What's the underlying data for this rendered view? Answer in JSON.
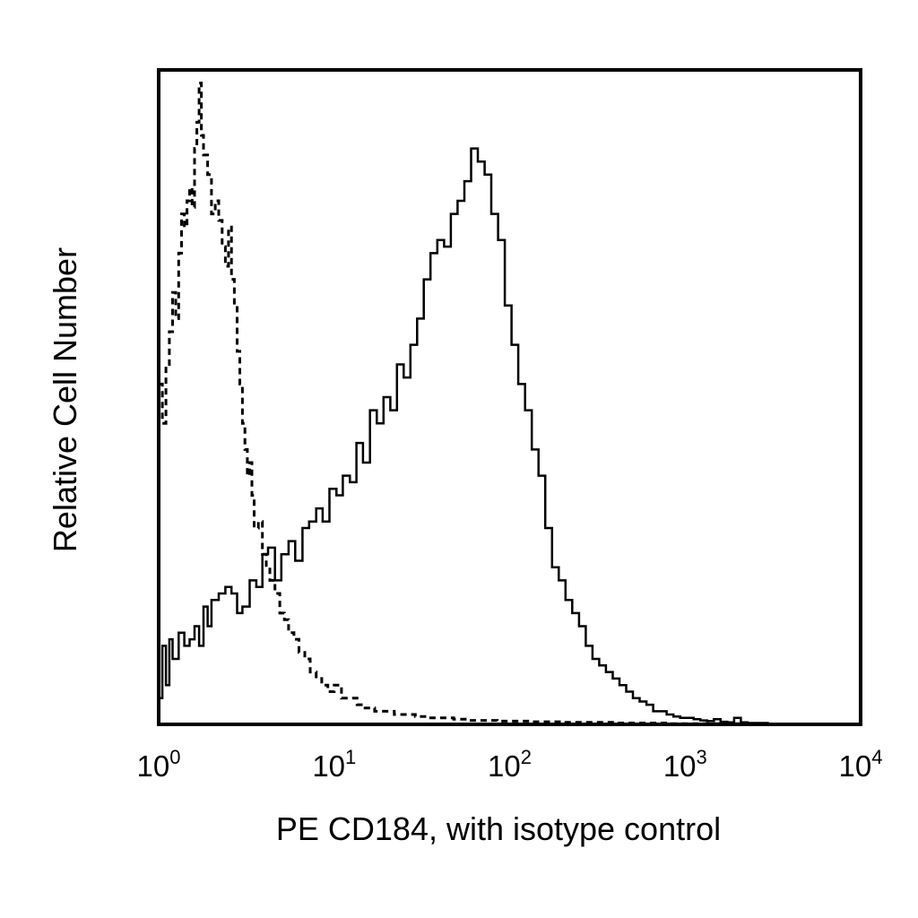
{
  "chart_data": {
    "type": "line",
    "title": "",
    "xlabel": "PE CD184, with isotype control",
    "ylabel": "Relative Cell Number",
    "x_scale": "log",
    "xlim": [
      1,
      10000
    ],
    "ylim": [
      0,
      1
    ],
    "grid": false,
    "legend": "none",
    "x_ticks": [
      {
        "value": 1,
        "base": "10",
        "exp": "0"
      },
      {
        "value": 10,
        "base": "10",
        "exp": "1"
      },
      {
        "value": 100,
        "base": "10",
        "exp": "2"
      },
      {
        "value": 1000,
        "base": "10",
        "exp": "3"
      },
      {
        "value": 10000,
        "base": "10",
        "exp": "4"
      }
    ],
    "series": [
      {
        "style": "solid",
        "color": "#000000",
        "x": [
          1.0,
          1.05,
          1.1,
          1.15,
          1.2,
          1.3,
          1.4,
          1.5,
          1.6,
          1.7,
          1.8,
          1.9,
          2.0,
          2.2,
          2.4,
          2.6,
          2.8,
          3.0,
          3.3,
          3.6,
          3.9,
          4.2,
          4.6,
          5.0,
          5.5,
          6.0,
          6.6,
          7.2,
          7.9,
          8.6,
          9.4,
          10.3,
          11.2,
          12.3,
          13.4,
          14.6,
          16.0,
          17.5,
          19.1,
          20.9,
          22.8,
          24.9,
          27.2,
          29.7,
          32.4,
          35.4,
          38.7,
          42.3,
          46.2,
          50.5,
          55.2,
          60.3,
          65.9,
          72.0,
          78.6,
          85.9,
          93.8,
          102.5,
          112.0,
          122.4,
          133.7,
          146.1,
          159.6,
          174.4,
          190.5,
          208.1,
          227.4,
          248.4,
          271.4,
          296.5,
          323.9,
          353.9,
          386.6,
          422.4,
          461.5,
          504.2,
          550.8,
          601.8,
          657.5,
          718.3,
          784.8,
          857.4,
          936.7,
          1023.4,
          1118.1,
          1221.5,
          1334.5,
          1457.9,
          1592.8,
          1740.1,
          1901.1,
          2077.0,
          2269.1,
          2479.0,
          2708.3,
          2958.9,
          3232.6,
          3531.6,
          3858.3,
          4215.2,
          4605.1,
          5031.1,
          5496.6,
          6005.0,
          6560.5,
          7167.4,
          7830.4,
          8554.8,
          9346.1,
          10000.0
        ],
        "y": [
          0.04,
          0.12,
          0.06,
          0.13,
          0.1,
          0.14,
          0.12,
          0.13,
          0.15,
          0.12,
          0.18,
          0.15,
          0.19,
          0.2,
          0.21,
          0.2,
          0.17,
          0.18,
          0.22,
          0.21,
          0.26,
          0.27,
          0.22,
          0.26,
          0.28,
          0.25,
          0.3,
          0.31,
          0.33,
          0.31,
          0.36,
          0.35,
          0.38,
          0.37,
          0.43,
          0.4,
          0.48,
          0.46,
          0.5,
          0.48,
          0.55,
          0.53,
          0.58,
          0.62,
          0.68,
          0.72,
          0.74,
          0.73,
          0.78,
          0.8,
          0.83,
          0.88,
          0.86,
          0.84,
          0.78,
          0.74,
          0.64,
          0.58,
          0.52,
          0.48,
          0.42,
          0.38,
          0.3,
          0.24,
          0.22,
          0.19,
          0.17,
          0.15,
          0.12,
          0.1,
          0.09,
          0.08,
          0.07,
          0.06,
          0.05,
          0.04,
          0.035,
          0.03,
          0.02,
          0.02,
          0.015,
          0.012,
          0.01,
          0.01,
          0.008,
          0.006,
          0.005,
          0.008,
          0.004,
          0.003,
          0.01,
          0.003,
          0.002,
          0.002,
          0.002,
          0.001,
          0.001,
          0.001,
          0.0,
          0.0,
          0.0,
          0.0,
          0.0,
          0.0,
          0.0,
          0.0,
          0.0,
          0.0,
          0.0,
          0.0
        ]
      },
      {
        "style": "dashed",
        "color": "#000000",
        "x": [
          1.0,
          1.05,
          1.1,
          1.15,
          1.2,
          1.25,
          1.3,
          1.35,
          1.4,
          1.45,
          1.5,
          1.55,
          1.6,
          1.65,
          1.7,
          1.75,
          1.8,
          1.9,
          2.0,
          2.1,
          2.2,
          2.3,
          2.4,
          2.5,
          2.6,
          2.7,
          2.8,
          2.9,
          3.0,
          3.1,
          3.2,
          3.3,
          3.4,
          3.5,
          3.7,
          3.9,
          4.1,
          4.3,
          4.6,
          4.9,
          5.2,
          5.5,
          5.9,
          6.3,
          6.8,
          7.3,
          7.9,
          8.5,
          9.2,
          10.0,
          11.0,
          12.0,
          13.5,
          15.0,
          17.0,
          19.0,
          22.0,
          25.0,
          29.0,
          34.0,
          40.0,
          48.0,
          58.0,
          70.0,
          85.0,
          105.0,
          130.0,
          160.0,
          200.0,
          250.0,
          320.0,
          400.0,
          500.0,
          650.0,
          800.0,
          1000.0,
          1300.0,
          1600.0,
          2000.0,
          2500.0,
          3200.0,
          4000.0,
          5000.0,
          6500.0,
          8000.0,
          10000.0
        ],
        "y": [
          0.52,
          0.46,
          0.55,
          0.6,
          0.66,
          0.62,
          0.72,
          0.78,
          0.76,
          0.8,
          0.82,
          0.79,
          0.88,
          0.92,
          0.98,
          0.9,
          0.87,
          0.84,
          0.78,
          0.8,
          0.77,
          0.73,
          0.7,
          0.76,
          0.68,
          0.64,
          0.57,
          0.52,
          0.46,
          0.42,
          0.38,
          0.4,
          0.35,
          0.3,
          0.31,
          0.26,
          0.24,
          0.22,
          0.2,
          0.17,
          0.16,
          0.14,
          0.13,
          0.11,
          0.1,
          0.08,
          0.07,
          0.06,
          0.05,
          0.06,
          0.04,
          0.04,
          0.03,
          0.025,
          0.02,
          0.02,
          0.015,
          0.015,
          0.012,
          0.01,
          0.01,
          0.008,
          0.006,
          0.006,
          0.005,
          0.005,
          0.004,
          0.004,
          0.003,
          0.003,
          0.003,
          0.002,
          0.002,
          0.002,
          0.001,
          0.001,
          0.001,
          0.001,
          0.0,
          0.0,
          0.0,
          0.0,
          0.0,
          0.0,
          0.0,
          0.0
        ]
      }
    ]
  }
}
